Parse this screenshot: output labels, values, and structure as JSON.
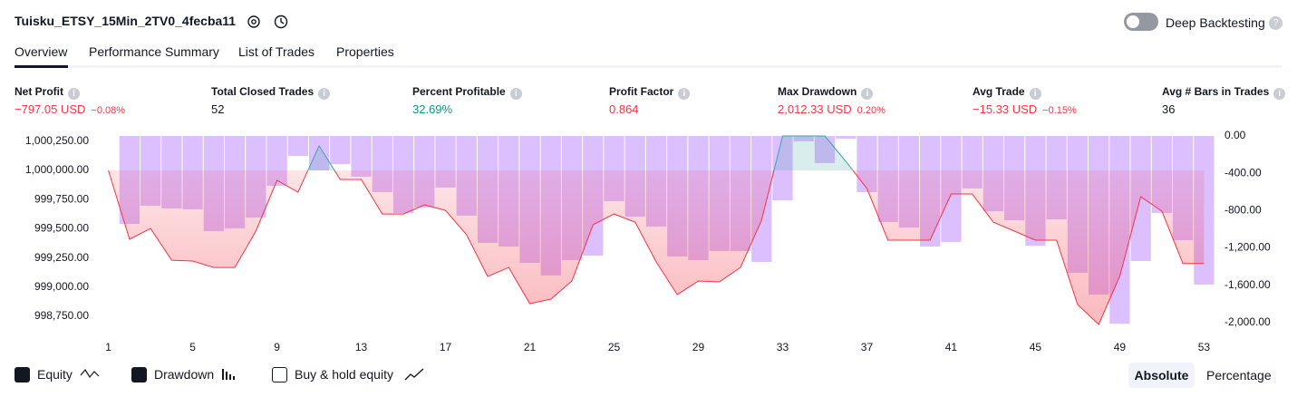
{
  "header": {
    "title": "Tuisku_ETSY_15Min_2TV0_4fecba11",
    "toggle_label": "Deep Backtesting"
  },
  "tabs": [
    "Overview",
    "Performance Summary",
    "List of Trades",
    "Properties"
  ],
  "metrics": [
    {
      "label": "Net Profit",
      "value": "−797.05 USD",
      "pct": "−0.08%",
      "color": "#f23645"
    },
    {
      "label": "Total Closed Trades",
      "value": "52",
      "color": "#131722"
    },
    {
      "label": "Percent Profitable",
      "value": "32.69%",
      "color": "#089981"
    },
    {
      "label": "Profit Factor",
      "value": "0.864",
      "color": "#f23645"
    },
    {
      "label": "Max Drawdown",
      "value": "2,012.33 USD",
      "pct": "0.20%",
      "color": "#f23645"
    },
    {
      "label": "Avg Trade",
      "value": "−15.33 USD",
      "pct": "−0.15%",
      "color": "#f23645"
    },
    {
      "label": "Avg # Bars in Trades",
      "value": "36",
      "color": "#131722"
    }
  ],
  "chart_data": {
    "type": "line",
    "x": [
      1,
      2,
      3,
      4,
      5,
      6,
      7,
      8,
      9,
      10,
      11,
      12,
      13,
      14,
      15,
      16,
      17,
      18,
      19,
      20,
      21,
      22,
      23,
      24,
      25,
      26,
      27,
      28,
      29,
      30,
      31,
      32,
      33,
      34,
      35,
      36,
      37,
      38,
      39,
      40,
      41,
      42,
      43,
      44,
      45,
      46,
      47,
      48,
      49,
      50,
      51,
      52,
      53
    ],
    "series": [
      {
        "name": "Equity",
        "color": "#f23645",
        "up_color": "#3fa6a6",
        "values": [
          1000000,
          999410,
          999503,
          999231,
          999224,
          999169,
          999169,
          999480,
          999915,
          999814,
          1000210,
          999922,
          999922,
          999627,
          999627,
          999705,
          999658,
          999449,
          999092,
          999169,
          998859,
          998898,
          999053,
          999534,
          999627,
          999557,
          999216,
          998936,
          999053,
          999045,
          999169,
          999573,
          1000295,
          1000295,
          1000295,
          1000078,
          999845,
          999402,
          999402,
          999402,
          999798,
          999798,
          999557,
          999480,
          999402,
          999402,
          998851,
          998680,
          999092,
          999775,
          999651,
          999203,
          999203
        ]
      },
      {
        "name": "Drawdown",
        "color": "#d6b4ff",
        "axis": "y2",
        "type": "bar",
        "values": [
          0,
          -942,
          -748,
          -777,
          -786,
          -1020,
          -990,
          -874,
          -534,
          -214,
          -369,
          -301,
          -437,
          -602,
          -825,
          -767,
          -553,
          -854,
          -1146,
          -1185,
          -1359,
          -1495,
          -1330,
          -1282,
          -699,
          -864,
          -971,
          -1291,
          -1330,
          -1233,
          -1233,
          -1350,
          -689,
          -58,
          -291,
          -29,
          -602,
          -922,
          -981,
          -1185,
          -1136,
          -563,
          -806,
          -903,
          -1175,
          -893,
          -1466,
          -1699,
          -2012,
          -1340,
          -825,
          -1117,
          -1592
        ]
      }
    ],
    "legend_extra": "Buy & hold equity",
    "xlim": [
      0.5,
      53.5
    ],
    "xticks": [
      1,
      5,
      9,
      13,
      17,
      21,
      25,
      29,
      33,
      37,
      41,
      45,
      49,
      53
    ],
    "ylim": [
      998626,
      1000295
    ],
    "yticks": [
      {
        "value": 1000250,
        "label": "1,000,250.00"
      },
      {
        "value": 1000000,
        "label": "1,000,000.00"
      },
      {
        "value": 999750,
        "label": "999,750.00"
      },
      {
        "value": 999500,
        "label": "999,500.00"
      },
      {
        "value": 999250,
        "label": "999,250.00"
      },
      {
        "value": 999000,
        "label": "999,000.00"
      },
      {
        "value": 998750,
        "label": "998,750.00"
      }
    ],
    "y2lim": [
      -2088,
      0
    ],
    "y2ticks": [
      {
        "value": 0,
        "label": "0.00"
      },
      {
        "value": -400,
        "label": "-400.00"
      },
      {
        "value": -800,
        "label": "-800.00"
      },
      {
        "value": -1200,
        "label": "-1,200.00"
      },
      {
        "value": -1600,
        "label": "-1,600.00"
      },
      {
        "value": -2000,
        "label": "-2,000.00"
      }
    ],
    "grid": false
  },
  "view_modes": [
    "Absolute",
    "Percentage"
  ]
}
